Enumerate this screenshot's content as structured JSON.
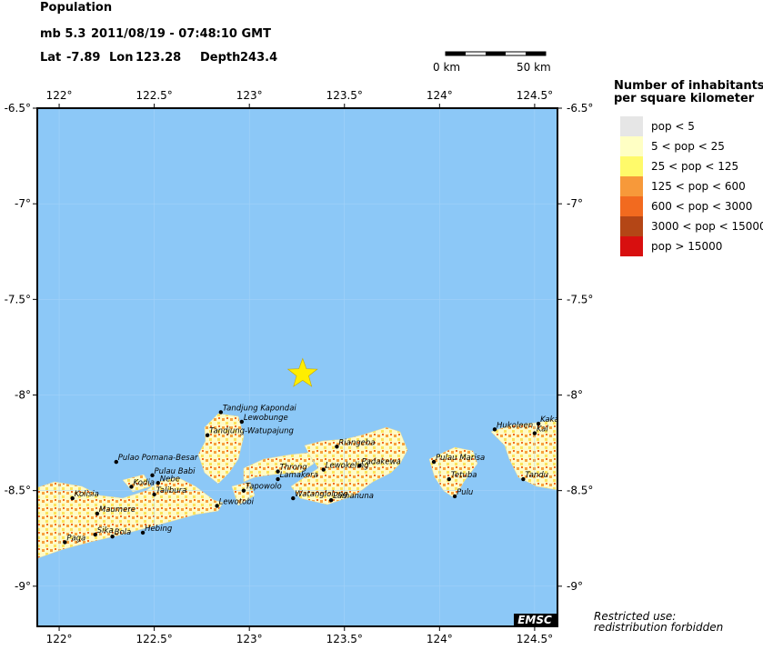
{
  "header": {
    "title": "Population",
    "magnitude": "mb 5.3",
    "datetime": "2011/08/19 - 07:48:10 GMT",
    "lat_label": "Lat",
    "lon_label": "Lon",
    "depth_label": "Depth"
  },
  "event": {
    "lat": -7.89,
    "lon": 123.28,
    "depth": 243.4
  },
  "scale_bar": {
    "left": "0 km",
    "right": "50 km"
  },
  "map": {
    "xlim": [
      121.885,
      124.62
    ],
    "ylim": [
      -9.21,
      -6.5
    ],
    "xticks": [
      {
        "value": 122,
        "label": "122°"
      },
      {
        "value": 122.5,
        "label": "122.5°"
      },
      {
        "value": 123,
        "label": "123°"
      },
      {
        "value": 123.5,
        "label": "123.5°"
      },
      {
        "value": 124,
        "label": "124°"
      },
      {
        "value": 124.5,
        "label": "124.5°"
      }
    ],
    "yticks": [
      {
        "value": -6.5,
        "label": "-6.5°"
      },
      {
        "value": -7,
        "label": "-7°"
      },
      {
        "value": -7.5,
        "label": "-7.5°"
      },
      {
        "value": -8,
        "label": "-8°"
      },
      {
        "value": -8.5,
        "label": "-8.5°"
      },
      {
        "value": -9,
        "label": "-9°"
      }
    ],
    "sea_color": "#8cc8f7",
    "epicenter_color": "#ffee00"
  },
  "places": [
    {
      "name": "Tandjung Kapondai",
      "lon": 122.85,
      "lat": -8.09
    },
    {
      "name": "Lewobunge",
      "lon": 122.96,
      "lat": -8.14
    },
    {
      "name": "Tandjung-Watupajung",
      "lon": 122.78,
      "lat": -8.21
    },
    {
      "name": "Pulao Pomana-Besar",
      "lon": 122.3,
      "lat": -8.35
    },
    {
      "name": "Pulau Babi",
      "lon": 122.49,
      "lat": -8.42
    },
    {
      "name": "Nebe",
      "lon": 122.52,
      "lat": -8.46
    },
    {
      "name": "Kodia",
      "lon": 122.38,
      "lat": -8.48
    },
    {
      "name": "Talibura",
      "lon": 122.5,
      "lat": -8.52
    },
    {
      "name": "Kolisia",
      "lon": 122.07,
      "lat": -8.54
    },
    {
      "name": "Maumere",
      "lon": 122.2,
      "lat": -8.62
    },
    {
      "name": "Paga",
      "lon": 122.03,
      "lat": -8.77
    },
    {
      "name": "Sika",
      "lon": 122.19,
      "lat": -8.73
    },
    {
      "name": "Bola",
      "lon": 122.28,
      "lat": -8.74
    },
    {
      "name": "Hebing",
      "lon": 122.44,
      "lat": -8.72
    },
    {
      "name": "Lewotobi",
      "lon": 122.83,
      "lat": -8.58
    },
    {
      "name": "Tapowolo",
      "lon": 122.97,
      "lat": -8.5
    },
    {
      "name": "Throng",
      "lon": 123.15,
      "lat": -8.4
    },
    {
      "name": "Lamakera",
      "lon": 123.15,
      "lat": -8.44
    },
    {
      "name": "Watanglolong",
      "lon": 123.23,
      "lat": -8.54
    },
    {
      "name": "Lamanuna",
      "lon": 123.43,
      "lat": -8.55
    },
    {
      "name": "Lewokeling",
      "lon": 123.39,
      "lat": -8.39
    },
    {
      "name": "Padakewa",
      "lon": 123.58,
      "lat": -8.37
    },
    {
      "name": "Riangeba",
      "lon": 123.46,
      "lat": -8.27
    },
    {
      "name": "Pulau Marisa",
      "lon": 123.97,
      "lat": -8.35
    },
    {
      "name": "Tetuba",
      "lon": 124.05,
      "lat": -8.44
    },
    {
      "name": "Pulu",
      "lon": 124.08,
      "lat": -8.53
    },
    {
      "name": "Hukoleen",
      "lon": 124.29,
      "lat": -8.18
    },
    {
      "name": "Kakar",
      "lon": 124.52,
      "lat": -8.15
    },
    {
      "name": "Kal",
      "lon": 124.5,
      "lat": -8.2
    },
    {
      "name": "Tandu",
      "lon": 124.44,
      "lat": -8.44
    }
  ],
  "legend": {
    "title_line1": "Number of inhabitants",
    "title_line2": "per square kilometer",
    "items": [
      {
        "label": "pop < 5",
        "color": "#e6e6e6"
      },
      {
        "label": "5 < pop < 25",
        "color": "#ffffc4"
      },
      {
        "label": "25 < pop < 125",
        "color": "#fffa6a"
      },
      {
        "label": "125 < pop < 600",
        "color": "#f7993a"
      },
      {
        "label": "600 < pop < 3000",
        "color": "#f26a1f"
      },
      {
        "label": "3000 < pop < 15000",
        "color": "#b44616"
      },
      {
        "label": "pop > 15000",
        "color": "#d80f0f"
      }
    ]
  },
  "footer": {
    "badge": "EMSC",
    "note_line1": "Restricted use:",
    "note_line2": "redistribution forbidden"
  }
}
